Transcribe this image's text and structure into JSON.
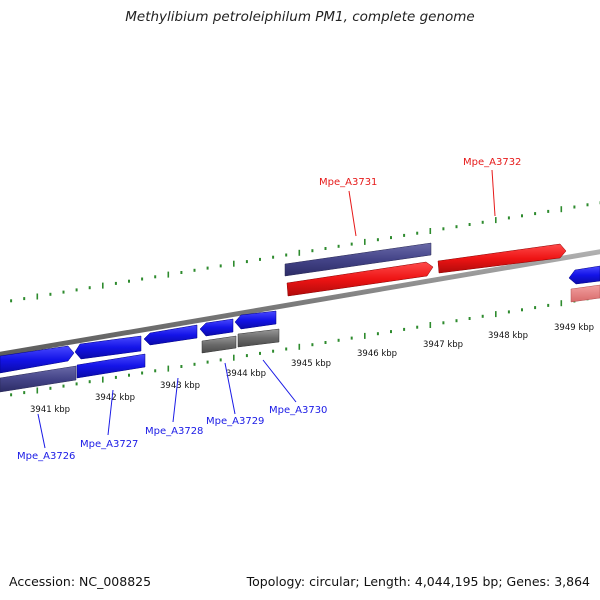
{
  "header": {
    "title": "Methylibium petroleiphilum PM1, complete genome"
  },
  "footer": {
    "accession": "Accession: NC_008825",
    "summary": "Topology: circular; Length: 4,044,195 bp; Genes: 3,864"
  },
  "scale": {
    "unit_labels": [
      "3941 kbp",
      "3942 kbp",
      "3943 kbp",
      "3944 kbp",
      "3945 kbp",
      "3946 kbp",
      "3947 kbp",
      "3948 kbp",
      "3949 kbp"
    ]
  },
  "genes": [
    {
      "name": "Mpe_A3726",
      "strand": "minus",
      "color": "#1a1ae6"
    },
    {
      "name": "Mpe_A3727",
      "strand": "minus",
      "color": "#1a1ae6"
    },
    {
      "name": "Mpe_A3728",
      "strand": "minus",
      "color": "#1a1ae6"
    },
    {
      "name": "Mpe_A3729",
      "strand": "minus",
      "color": "#1a1ae6"
    },
    {
      "name": "Mpe_A3730",
      "strand": "minus",
      "color": "#1a1ae6"
    },
    {
      "name": "Mpe_A3731",
      "strand": "plus",
      "color": "#e61a1a"
    },
    {
      "name": "Mpe_A3732",
      "strand": "plus",
      "color": "#e61a1a"
    }
  ],
  "colors": {
    "minus_gene": "#1a1ae6",
    "plus_gene": "#e61a1a",
    "minus_cds": "#4b4b8f",
    "plus_cds": "#e48080",
    "other_cds": "#6a6a6a",
    "ticks": "#2e8b2e",
    "backbone": "#8a8a8a"
  }
}
